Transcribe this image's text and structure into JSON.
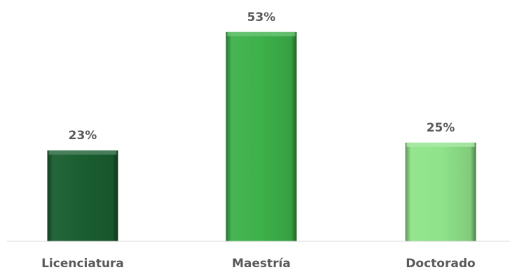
{
  "chart_data": {
    "type": "bar",
    "categories": [
      "Licenciatura",
      "Maestría",
      "Doctorado"
    ],
    "values": [
      23,
      53,
      25
    ],
    "value_labels": [
      "23%",
      "53%",
      "25%"
    ],
    "bar_colors": [
      "#1a5e30",
      "#3db14a",
      "#8fe38a"
    ],
    "unit": "%",
    "ylim": [
      0,
      60
    ],
    "grid": false,
    "legend": "none"
  }
}
